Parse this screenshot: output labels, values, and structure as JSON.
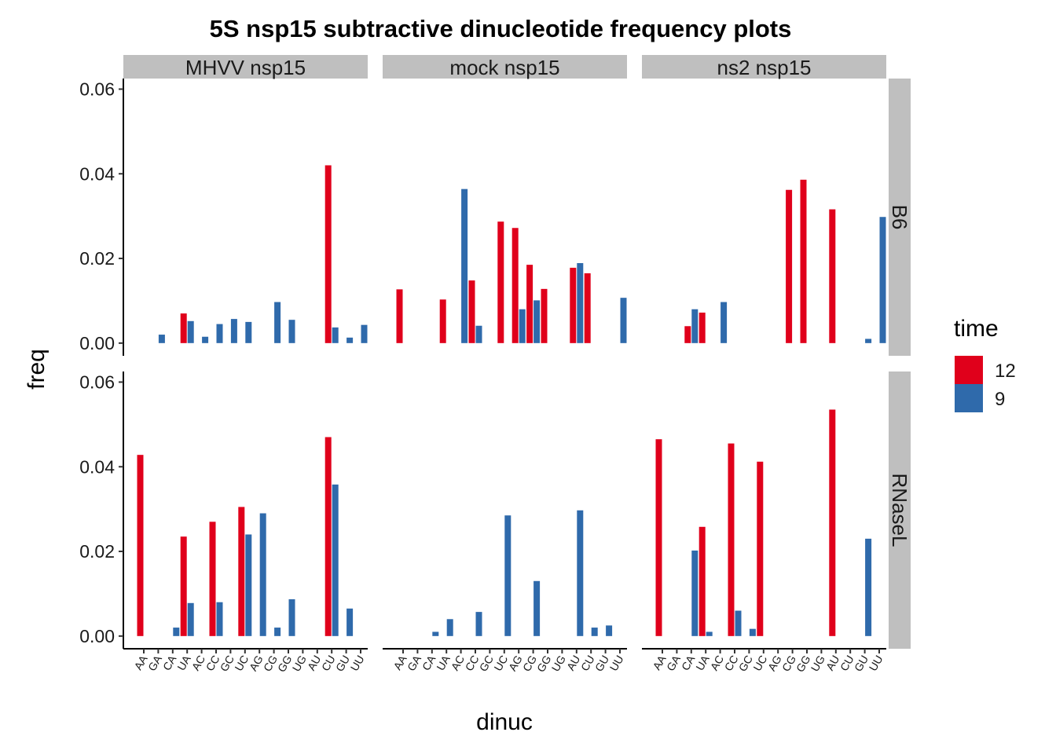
{
  "chart_data": {
    "type": "bar",
    "title": "5S nsp15 subtractive dinucleotide frequency plots",
    "xlabel": "dinuc",
    "ylabel": "freq",
    "ylim": [
      -0.003,
      0.0625
    ],
    "y_ticks": [
      0.0,
      0.02,
      0.04,
      0.06
    ],
    "y_tick_labels": [
      "0.00",
      "0.02",
      "0.04",
      "0.06"
    ],
    "categories": [
      "AA",
      "GA",
      "CA",
      "UA",
      "AC",
      "CC",
      "GC",
      "UC",
      "AG",
      "CG",
      "GG",
      "UG",
      "AU",
      "CU",
      "GU",
      "UU"
    ],
    "col_facets": [
      "MHVV_nsp15",
      "mock_nsp15",
      "ns2_nsp15"
    ],
    "row_facets": [
      "B6",
      "RNaseL"
    ],
    "legend": {
      "title": "time",
      "entries": [
        {
          "name": "12",
          "color": "#e0001b"
        },
        {
          "name": "9",
          "color": "#2f6aab"
        }
      ]
    },
    "panels": [
      {
        "col": "MHVV_nsp15",
        "row": "B6",
        "series": [
          {
            "name": "12",
            "values": [
              0,
              0,
              0,
              0.007,
              0,
              0,
              0,
              0,
              0,
              0,
              0,
              0,
              0,
              0.042,
              0,
              0
            ]
          },
          {
            "name": "9",
            "values": [
              0,
              0.002,
              0,
              0.0052,
              0.0015,
              0.0045,
              0.0057,
              0.005,
              0,
              0.0097,
              0.0055,
              0,
              0,
              0.0037,
              0.0013,
              0.0043
            ]
          }
        ]
      },
      {
        "col": "mock_nsp15",
        "row": "B6",
        "series": [
          {
            "name": "12",
            "values": [
              0.0127,
              0,
              0,
              0.0103,
              0,
              0.0148,
              0,
              0.0287,
              0.0272,
              0.0185,
              0.0128,
              0,
              0.0178,
              0.0165,
              0,
              0
            ]
          },
          {
            "name": "9",
            "values": [
              0,
              0,
              0,
              0,
              0.0364,
              0.0041,
              0,
              0,
              0.008,
              0.0101,
              0,
              0,
              0.0189,
              0,
              0,
              0.0107
            ]
          }
        ]
      },
      {
        "col": "ns2_nsp15",
        "row": "B6",
        "series": [
          {
            "name": "12",
            "values": [
              0,
              0,
              0.004,
              0.0072,
              0,
              0,
              0,
              0,
              0,
              0.0362,
              0.0386,
              0,
              0.0316,
              0,
              0,
              0
            ]
          },
          {
            "name": "9",
            "values": [
              0,
              0,
              0.008,
              0,
              0.0097,
              0,
              0,
              0,
              0,
              0,
              0,
              0,
              0,
              0,
              0.001,
              0.0298
            ]
          }
        ]
      },
      {
        "col": "MHVV_nsp15",
        "row": "RNaseL",
        "series": [
          {
            "name": "12",
            "values": [
              0.0428,
              0,
              0,
              0.0235,
              0,
              0.027,
              0,
              0.0305,
              0,
              0,
              0,
              0,
              0,
              0.047,
              0,
              0
            ]
          },
          {
            "name": "9",
            "values": [
              0,
              0,
              0.002,
              0.0078,
              0,
              0.008,
              0,
              0.024,
              0.029,
              0.002,
              0.0087,
              0,
              0,
              0.0358,
              0.0065,
              0
            ]
          }
        ]
      },
      {
        "col": "mock_nsp15",
        "row": "RNaseL",
        "series": [
          {
            "name": "12",
            "values": [
              0,
              0,
              0,
              0,
              0,
              0,
              0,
              0,
              0,
              0,
              0,
              0,
              0,
              0,
              0,
              0
            ]
          },
          {
            "name": "9",
            "values": [
              0,
              0,
              0.001,
              0.004,
              0,
              0.0057,
              0,
              0.0285,
              0,
              0.013,
              0,
              0,
              0.0297,
              0.002,
              0.0025,
              0
            ]
          }
        ]
      },
      {
        "col": "ns2_nsp15",
        "row": "RNaseL",
        "series": [
          {
            "name": "12",
            "values": [
              0.0465,
              0,
              0,
              0.0258,
              0,
              0.0455,
              0,
              0.0412,
              0,
              0,
              0,
              0,
              0.0535,
              0,
              0,
              0
            ]
          },
          {
            "name": "9",
            "values": [
              0,
              0,
              0.0202,
              0.001,
              0,
              0.006,
              0.0017,
              0,
              0,
              0,
              0,
              0,
              0,
              0,
              0.023,
              0
            ]
          }
        ]
      }
    ]
  }
}
